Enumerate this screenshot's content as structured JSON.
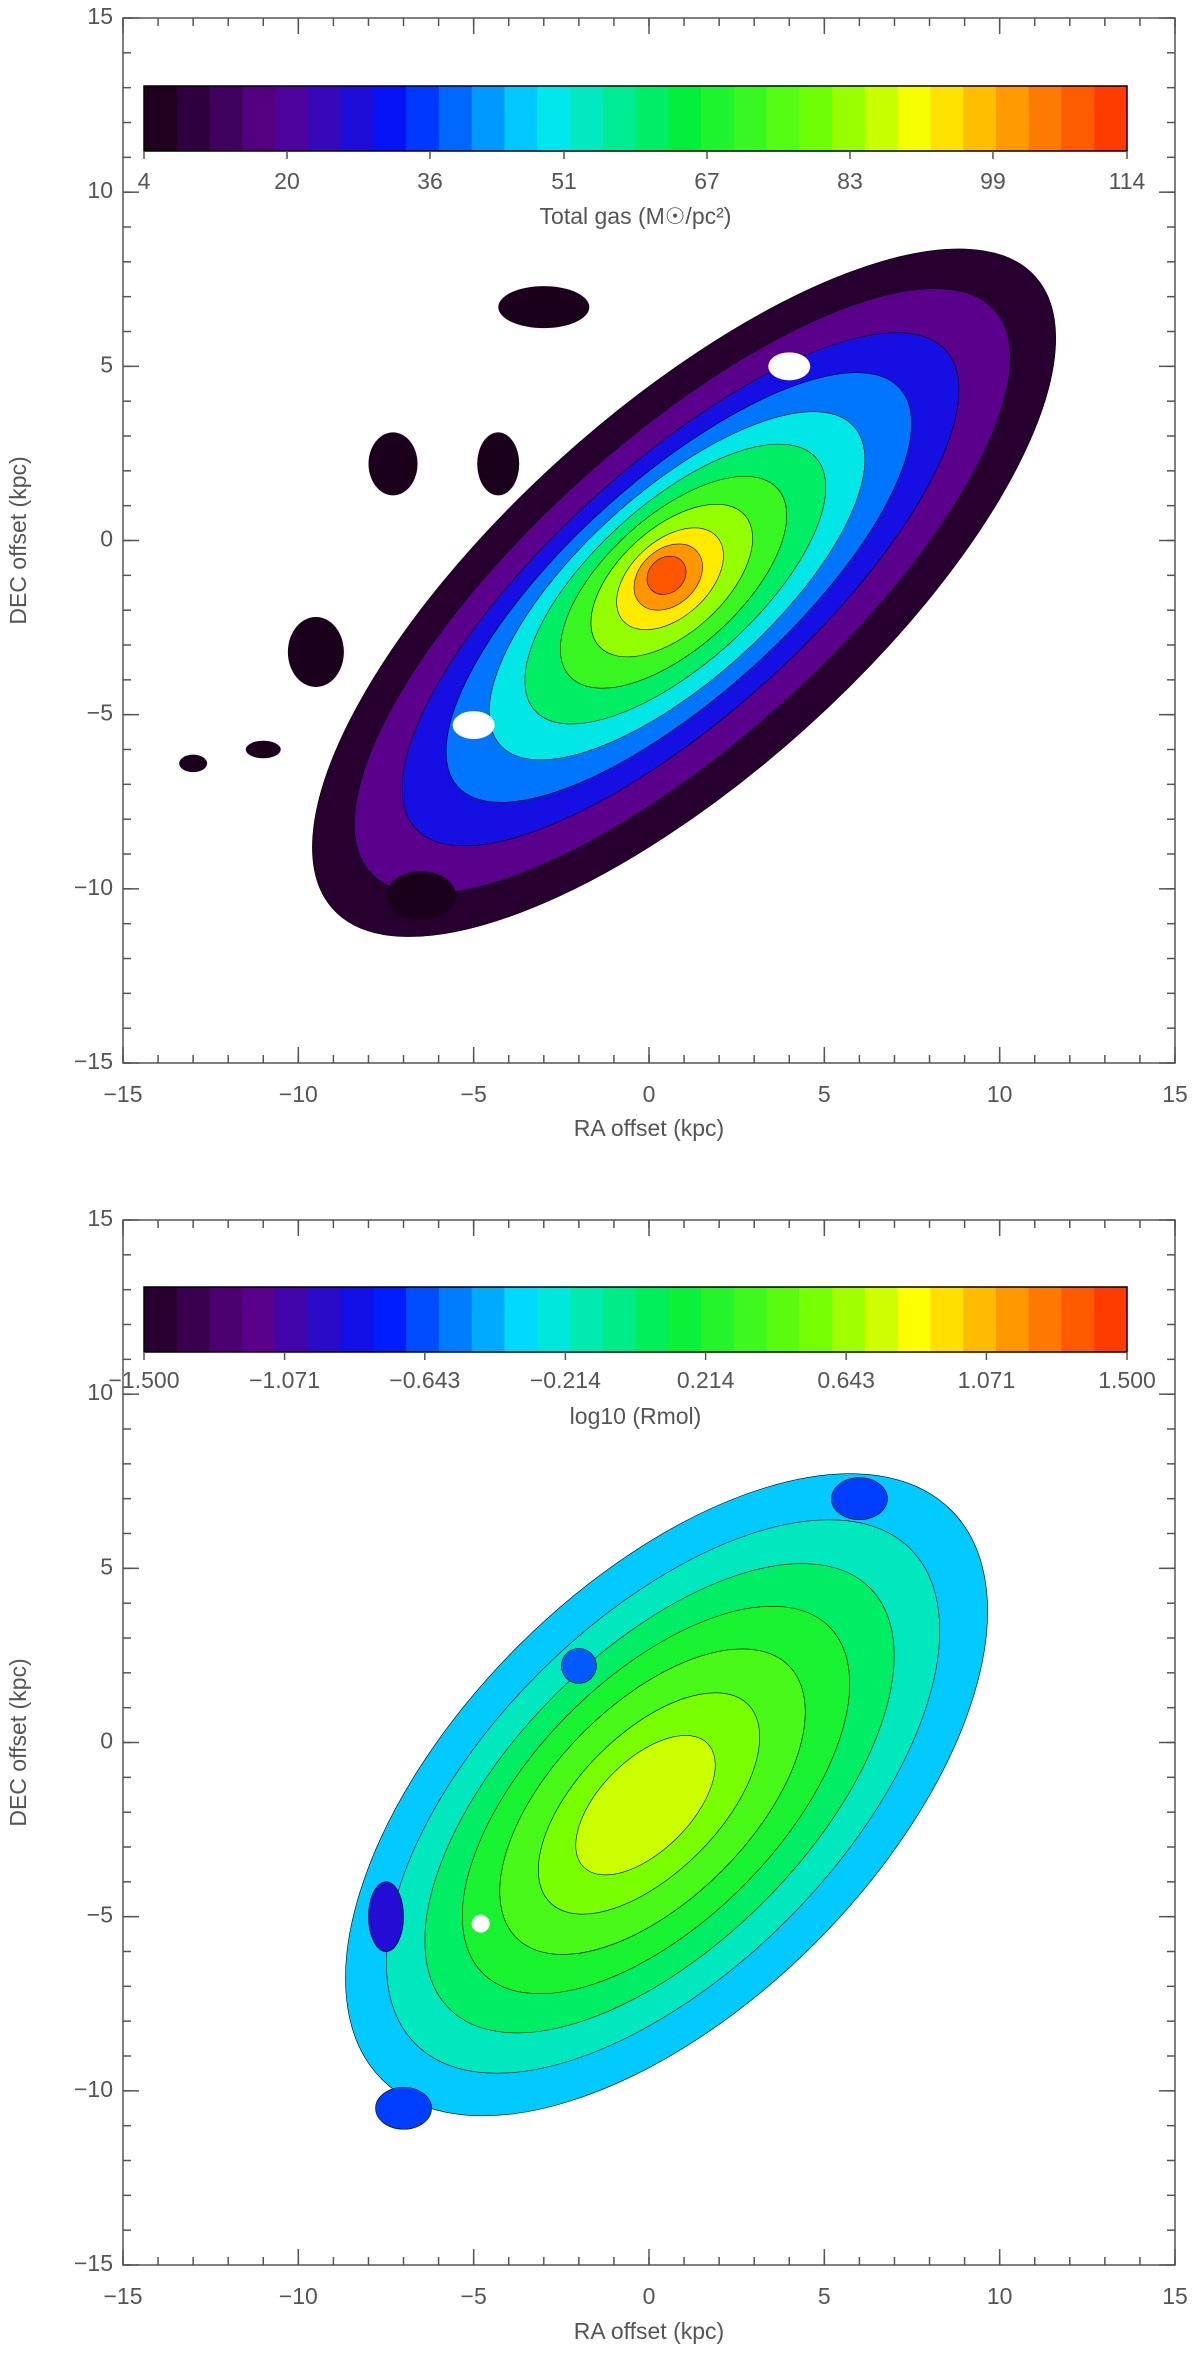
{
  "chart_data": [
    {
      "type": "contour",
      "xlabel": "RA offset (kpc)",
      "ylabel": "DEC offset (kpc)",
      "xlim": [
        -15,
        15
      ],
      "ylim": [
        -15,
        15
      ],
      "xticks": [
        {
          "value": -15,
          "label": "−15"
        },
        {
          "value": -10,
          "label": "−10"
        },
        {
          "value": -5,
          "label": "−5"
        },
        0,
        5,
        10,
        15
      ],
      "yticks": [
        {
          "value": -15,
          "label": "−15"
        },
        {
          "value": -10,
          "label": "−10"
        },
        {
          "value": -5,
          "label": "−5"
        },
        0,
        5,
        10,
        15
      ],
      "colorbar": {
        "label": "Total gas (M☉/pc²)",
        "lim": [
          4,
          114
        ],
        "ticks": [
          4,
          20,
          36,
          51,
          67,
          83,
          99,
          114
        ]
      }
    },
    {
      "type": "contour",
      "xlabel": "RA offset (kpc)",
      "ylabel": "DEC offset (kpc)",
      "xlim": [
        -15,
        15
      ],
      "ylim": [
        -15,
        15
      ],
      "xticks": [
        {
          "value": -15,
          "label": "−15"
        },
        {
          "value": -10,
          "label": "−10"
        },
        {
          "value": -5,
          "label": "−5"
        },
        0,
        5,
        10,
        15
      ],
      "yticks": [
        {
          "value": -15,
          "label": "−15"
        },
        {
          "value": -10,
          "label": "−10"
        },
        {
          "value": -5,
          "label": "−5"
        },
        0,
        5,
        10,
        15
      ],
      "colorbar": {
        "label": "log10 (Rmol)",
        "lim": [
          -1.5,
          1.5
        ],
        "ticks": [
          {
            "value": -1.5,
            "label": "−1.500"
          },
          {
            "value": -1.071,
            "label": "−1.071"
          },
          {
            "value": -0.643,
            "label": "−0.643"
          },
          {
            "value": -0.214,
            "label": "−0.214"
          },
          0.214,
          0.643,
          1.071,
          {
            "value": 1.5,
            "label": "1.500"
          }
        ]
      }
    }
  ]
}
